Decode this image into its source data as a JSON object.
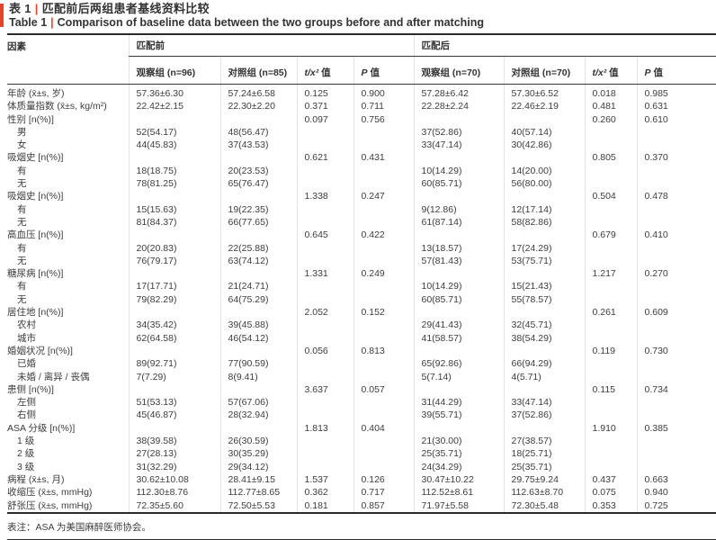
{
  "accent_color": "#e5432d",
  "header": {
    "table_label_zh": "表 1",
    "divider": "|",
    "title_zh": "匹配前后两组患者基线资料比较",
    "table_label_en": "Table 1",
    "title_en": "Comparison of baseline data between the two groups before and after matching"
  },
  "table": {
    "factor_header": "因素",
    "pre_header": "匹配前",
    "post_header": "匹配后",
    "col_headers": {
      "pre_obs": "观察组 (n=96)",
      "pre_ctrl": "对照组 (n=85)",
      "post_obs": "观察组 (n=70)",
      "post_ctrl": "对照组 (n=70)",
      "stat_symbol": "t/x²",
      "p_symbol": "P",
      "value_word": "值"
    },
    "rows": [
      {
        "label": "年龄 (x̄±s, 岁)",
        "indent": false,
        "cells": [
          "57.36±6.30",
          "57.24±6.58",
          "0.125",
          "0.900",
          "57.28±6.42",
          "57.30±6.52",
          "0.018",
          "0.985"
        ]
      },
      {
        "label": "体质量指数 (x̄±s, kg/m²)",
        "indent": false,
        "cells": [
          "22.42±2.15",
          "22.30±2.20",
          "0.371",
          "0.711",
          "22.28±2.24",
          "22.46±2.19",
          "0.481",
          "0.631"
        ]
      },
      {
        "label": "性别 [n(%)]",
        "indent": false,
        "cells": [
          "",
          "",
          "0.097",
          "0.756",
          "",
          "",
          "0.260",
          "0.610"
        ]
      },
      {
        "label": "男",
        "indent": true,
        "cells": [
          "52(54.17)",
          "48(56.47)",
          "",
          "",
          "37(52.86)",
          "40(57.14)",
          "",
          ""
        ]
      },
      {
        "label": "女",
        "indent": true,
        "cells": [
          "44(45.83)",
          "37(43.53)",
          "",
          "",
          "33(47.14)",
          "30(42.86)",
          "",
          ""
        ]
      },
      {
        "label": "吸烟史 [n(%)]",
        "indent": false,
        "cells": [
          "",
          "",
          "0.621",
          "0.431",
          "",
          "",
          "0.805",
          "0.370"
        ]
      },
      {
        "label": "有",
        "indent": true,
        "cells": [
          "18(18.75)",
          "20(23.53)",
          "",
          "",
          "10(14.29)",
          "14(20.00)",
          "",
          ""
        ]
      },
      {
        "label": "无",
        "indent": true,
        "cells": [
          "78(81.25)",
          "65(76.47)",
          "",
          "",
          "60(85.71)",
          "56(80.00)",
          "",
          ""
        ]
      },
      {
        "label": "吸烟史 [n(%)]",
        "indent": false,
        "cells": [
          "",
          "",
          "1.338",
          "0.247",
          "",
          "",
          "0.504",
          "0.478"
        ]
      },
      {
        "label": "有",
        "indent": true,
        "cells": [
          "15(15.63)",
          "19(22.35)",
          "",
          "",
          "9(12.86)",
          "12(17.14)",
          "",
          ""
        ]
      },
      {
        "label": "无",
        "indent": true,
        "cells": [
          "81(84.37)",
          "66(77.65)",
          "",
          "",
          "61(87.14)",
          "58(82.86)",
          "",
          ""
        ]
      },
      {
        "label": "高血压 [n(%)]",
        "indent": false,
        "cells": [
          "",
          "",
          "0.645",
          "0.422",
          "",
          "",
          "0.679",
          "0.410"
        ]
      },
      {
        "label": "有",
        "indent": true,
        "cells": [
          "20(20.83)",
          "22(25.88)",
          "",
          "",
          "13(18.57)",
          "17(24.29)",
          "",
          ""
        ]
      },
      {
        "label": "无",
        "indent": true,
        "cells": [
          "76(79.17)",
          "63(74.12)",
          "",
          "",
          "57(81.43)",
          "53(75.71)",
          "",
          ""
        ]
      },
      {
        "label": "糖尿病 [n(%)]",
        "indent": false,
        "cells": [
          "",
          "",
          "1.331",
          "0.249",
          "",
          "",
          "1.217",
          "0.270"
        ]
      },
      {
        "label": "有",
        "indent": true,
        "cells": [
          "17(17.71)",
          "21(24.71)",
          "",
          "",
          "10(14.29)",
          "15(21.43)",
          "",
          ""
        ]
      },
      {
        "label": "无",
        "indent": true,
        "cells": [
          "79(82.29)",
          "64(75.29)",
          "",
          "",
          "60(85.71)",
          "55(78.57)",
          "",
          ""
        ]
      },
      {
        "label": "居住地 [n(%)]",
        "indent": false,
        "cells": [
          "",
          "",
          "2.052",
          "0.152",
          "",
          "",
          "0.261",
          "0.609"
        ]
      },
      {
        "label": "农村",
        "indent": true,
        "cells": [
          "34(35.42)",
          "39(45.88)",
          "",
          "",
          "29(41.43)",
          "32(45.71)",
          "",
          ""
        ]
      },
      {
        "label": "城市",
        "indent": true,
        "cells": [
          "62(64.58)",
          "46(54.12)",
          "",
          "",
          "41(58.57)",
          "38(54.29)",
          "",
          ""
        ]
      },
      {
        "label": "婚姻状况 [n(%)]",
        "indent": false,
        "cells": [
          "",
          "",
          "0.056",
          "0.813",
          "",
          "",
          "0.119",
          "0.730"
        ]
      },
      {
        "label": "已婚",
        "indent": true,
        "cells": [
          "89(92.71)",
          "77(90.59)",
          "",
          "",
          "65(92.86)",
          "66(94.29)",
          "",
          ""
        ]
      },
      {
        "label": "未婚 / 离异 / 丧偶",
        "indent": true,
        "cells": [
          "7(7.29)",
          "8(9.41)",
          "",
          "",
          "5(7.14)",
          "4(5.71)",
          "",
          ""
        ]
      },
      {
        "label": "患侧 [n(%)]",
        "indent": false,
        "cells": [
          "",
          "",
          "3.637",
          "0.057",
          "",
          "",
          "0.115",
          "0.734"
        ]
      },
      {
        "label": "左侧",
        "indent": true,
        "cells": [
          "51(53.13)",
          "57(67.06)",
          "",
          "",
          "31(44.29)",
          "33(47.14)",
          "",
          ""
        ]
      },
      {
        "label": "右侧",
        "indent": true,
        "cells": [
          "45(46.87)",
          "28(32.94)",
          "",
          "",
          "39(55.71)",
          "37(52.86)",
          "",
          ""
        ]
      },
      {
        "label": "ASA 分级 [n(%)]",
        "indent": false,
        "cells": [
          "",
          "",
          "1.813",
          "0.404",
          "",
          "",
          "1.910",
          "0.385"
        ]
      },
      {
        "label": "1 级",
        "indent": true,
        "cells": [
          "38(39.58)",
          "26(30.59)",
          "",
          "",
          "21(30.00)",
          "27(38.57)",
          "",
          ""
        ]
      },
      {
        "label": "2 级",
        "indent": true,
        "cells": [
          "27(28.13)",
          "30(35.29)",
          "",
          "",
          "25(35.71)",
          "18(25.71)",
          "",
          ""
        ]
      },
      {
        "label": "3 级",
        "indent": true,
        "cells": [
          "31(32.29)",
          "29(34.12)",
          "",
          "",
          "24(34.29)",
          "25(35.71)",
          "",
          ""
        ]
      },
      {
        "label": "病程 (x̄±s, 月)",
        "indent": false,
        "cells": [
          "30.62±10.08",
          "28.41±9.15",
          "1.537",
          "0.126",
          "30.47±10.22",
          "29.75±9.24",
          "0.437",
          "0.663"
        ]
      },
      {
        "label": "收缩压 (x̄±s, mmHg)",
        "indent": false,
        "cells": [
          "112.30±8.76",
          "112.77±8.65",
          "0.362",
          "0.717",
          "112.52±8.61",
          "112.63±8.70",
          "0.075",
          "0.940"
        ]
      },
      {
        "label": "舒张压 (x̄±s, mmHg)",
        "indent": false,
        "cells": [
          "72.35±5.60",
          "72.50±5.53",
          "0.181",
          "0.857",
          "71.97±5.58",
          "72.30±5.48",
          "0.353",
          "0.725"
        ]
      }
    ]
  },
  "footnote": "表注：ASA 为美国麻醉医师协会。"
}
